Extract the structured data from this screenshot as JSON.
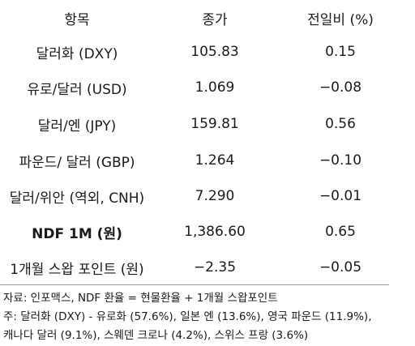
{
  "table": {
    "headers": [
      "항목",
      "종가",
      "전일비 (%)"
    ],
    "rows": [
      {
        "item": "달러화 (DXY)",
        "close": "105.83",
        "change": "0.15"
      },
      {
        "item": "유로/달러 (USD)",
        "close": "1.069",
        "change": "−0.08"
      },
      {
        "item": "달러/엔 (JPY)",
        "close": "159.81",
        "change": "0.56"
      },
      {
        "item": "파운드/ 달러 (GBP)",
        "close": "1.264",
        "change": "−0.10"
      },
      {
        "item": "달러/위안 (역외, CNH)",
        "close": "7.290",
        "change": "−0.01"
      },
      {
        "item": "NDF 1M (원)",
        "close": "1,386.60",
        "change": "0.65"
      },
      {
        "item": "1개월 스왑 포인트 (원)",
        "close": "−2.35",
        "change": "−0.05"
      }
    ]
  },
  "notes": {
    "source": "자료: 인포맥스, NDF 환율 = 현물환율 + 1개월 스왑포인트",
    "note_line1": "주: 달러화 (DXY) - 유로화 (57.6%), 일본 엔 (13.6%), 영국 파운드 (11.9%),",
    "note_line2": "캐나다 달러 (9.1%), 스웨덴 크로나 (4.2%), 스위스 프랑 (3.6%)"
  }
}
